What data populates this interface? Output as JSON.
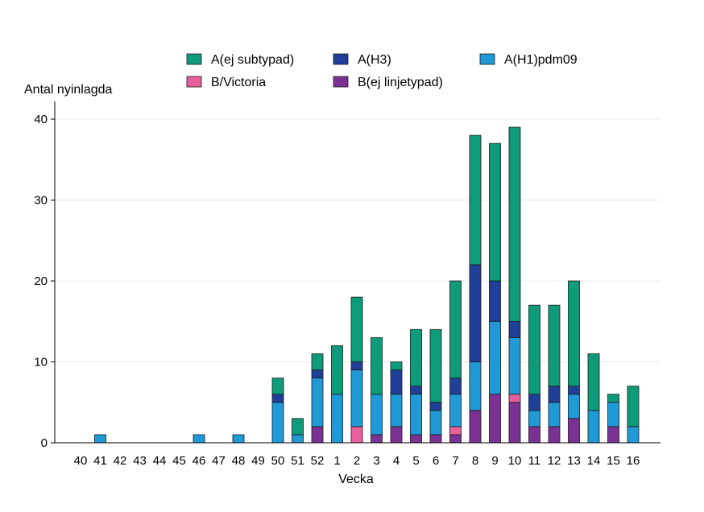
{
  "chart_data": {
    "type": "bar",
    "stacked": true,
    "xlabel": "Vecka",
    "ylabel": "Antal nyinlagda",
    "ylim": [
      0,
      42
    ],
    "yticks": [
      0,
      10,
      20,
      30,
      40
    ],
    "grid": "horizontal",
    "legend_position": "top",
    "categories": [
      "40",
      "41",
      "42",
      "43",
      "44",
      "45",
      "46",
      "47",
      "48",
      "49",
      "50",
      "51",
      "52",
      "1",
      "2",
      "3",
      "4",
      "5",
      "6",
      "7",
      "8",
      "9",
      "10",
      "11",
      "12",
      "13",
      "14",
      "15",
      "16"
    ],
    "series": [
      {
        "name": "B(ej linjetypad)",
        "color": "#7b3294",
        "values": [
          0,
          0,
          0,
          0,
          0,
          0,
          0,
          0,
          0,
          0,
          0,
          0,
          2,
          0,
          0,
          1,
          2,
          1,
          1,
          1,
          4,
          6,
          5,
          2,
          2,
          3,
          0,
          2,
          0
        ]
      },
      {
        "name": "B/Victoria",
        "color": "#e7609b",
        "values": [
          0,
          0,
          0,
          0,
          0,
          0,
          0,
          0,
          0,
          0,
          0,
          0,
          0,
          0,
          2,
          0,
          0,
          0,
          0,
          1,
          0,
          0,
          1,
          0,
          0,
          0,
          0,
          0,
          0
        ]
      },
      {
        "name": "A(H1)pdm09",
        "color": "#1f9ad6",
        "values": [
          0,
          1,
          0,
          0,
          0,
          0,
          1,
          0,
          1,
          0,
          5,
          1,
          6,
          6,
          7,
          5,
          4,
          5,
          3,
          4,
          6,
          9,
          7,
          2,
          3,
          3,
          4,
          3,
          2
        ]
      },
      {
        "name": "A(H3)",
        "color": "#1f3f99",
        "values": [
          0,
          0,
          0,
          0,
          0,
          0,
          0,
          0,
          0,
          0,
          1,
          0,
          1,
          0,
          1,
          0,
          3,
          1,
          1,
          2,
          12,
          5,
          2,
          2,
          2,
          1,
          0,
          0,
          0
        ]
      },
      {
        "name": "A(ej subtypad)",
        "color": "#0e9b7a",
        "values": [
          0,
          0,
          0,
          0,
          0,
          0,
          0,
          0,
          0,
          0,
          2,
          2,
          2,
          6,
          8,
          7,
          1,
          7,
          9,
          12,
          16,
          17,
          24,
          11,
          10,
          13,
          7,
          1,
          5
        ]
      }
    ],
    "legend": [
      {
        "name": "A(ej subtypad)",
        "color": "#0e9b7a"
      },
      {
        "name": "A(H3)",
        "color": "#1f3f99"
      },
      {
        "name": "A(H1)pdm09",
        "color": "#1f9ad6"
      },
      {
        "name": "B/Victoria",
        "color": "#e7609b"
      },
      {
        "name": "B(ej linjetypad)",
        "color": "#7b3294"
      }
    ]
  }
}
